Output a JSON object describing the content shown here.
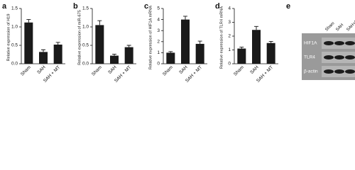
{
  "chart_data": [
    {
      "type": "bar",
      "panel": "a",
      "ylabel": "Relative expression of H19",
      "categories": [
        "Sham",
        "SAH",
        "SAH + MT"
      ],
      "values": [
        1.12,
        0.32,
        0.52
      ],
      "errors": [
        0.08,
        0.06,
        0.06
      ],
      "color": "#1a1a1a",
      "ylim": [
        0,
        1.5
      ],
      "yticks": [
        {
          "value": 0,
          "label": "0.0"
        },
        0.5,
        {
          "value": 1,
          "label": "1.0"
        },
        1.5
      ]
    },
    {
      "type": "bar",
      "panel": "b",
      "ylabel": "Relative expression of miR-675",
      "categories": [
        "Sham",
        "SAH",
        "SAH + MT"
      ],
      "values": [
        1.05,
        0.22,
        0.45
      ],
      "errors": [
        0.12,
        0.04,
        0.05
      ],
      "color": "#1a1a1a",
      "ylim": [
        0,
        1.5
      ],
      "yticks": [
        {
          "value": 0,
          "label": "0.0"
        },
        0.5,
        {
          "value": 1,
          "label": "1.0"
        },
        1.5
      ]
    },
    {
      "type": "bar",
      "panel": "c",
      "ylabel": "Relative expression of HIF1A mRNA",
      "categories": [
        "Sham",
        "SAH",
        "SAH + MT"
      ],
      "values": [
        1.0,
        4.0,
        1.8
      ],
      "errors": [
        0.1,
        0.3,
        0.25
      ],
      "color": "#1a1a1a",
      "ylim": [
        0,
        5
      ],
      "yticks": [
        0,
        1,
        2,
        3,
        4,
        5
      ]
    },
    {
      "type": "bar",
      "panel": "d",
      "ylabel": "Relative expression of TLR4 mRNA",
      "categories": [
        "Sham",
        "SAH",
        "SAH + MT"
      ],
      "values": [
        1.1,
        2.45,
        1.5
      ],
      "errors": [
        0.1,
        0.25,
        0.12
      ],
      "color": "#1a1a1a",
      "ylim": [
        0,
        4
      ],
      "yticks": [
        0,
        1,
        2,
        3,
        4
      ]
    }
  ],
  "blot": {
    "panel": "e",
    "lanes": [
      "Sham",
      "SAH",
      "SAH+MT"
    ],
    "rows": [
      "HIF1A",
      "TLR4",
      "β-actin"
    ]
  }
}
